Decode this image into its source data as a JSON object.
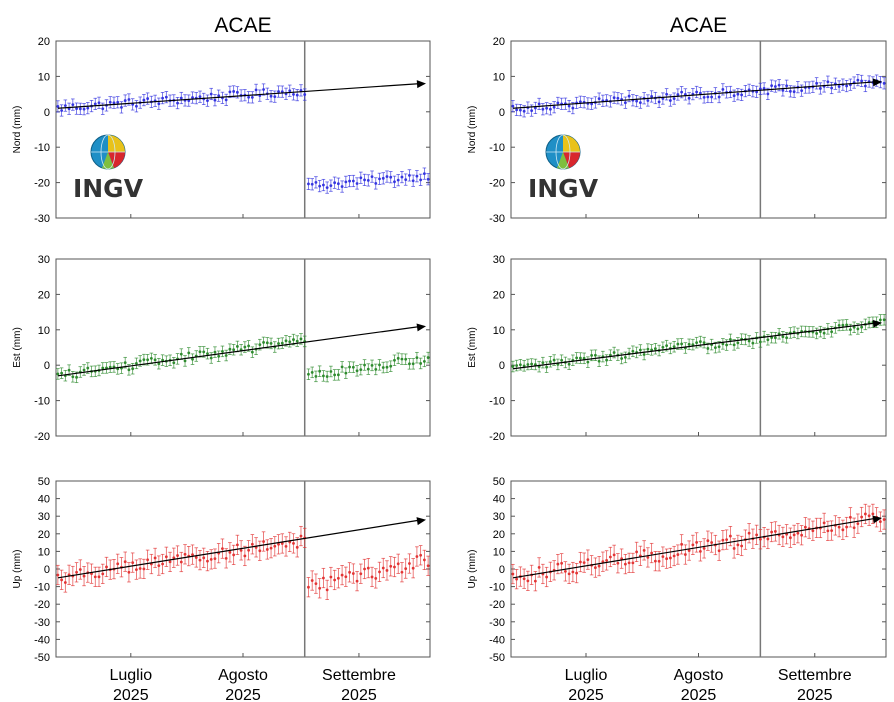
{
  "chart_data": [
    {
      "type": "scatter",
      "title": "ACAE",
      "logo": {
        "text": "INGV",
        "icon": "globe-icon"
      },
      "x_tick_labels": [
        [
          "Luglio",
          "2025"
        ],
        [
          "Agosto",
          "2025"
        ],
        [
          "Settembre",
          "2025"
        ]
      ],
      "panels": [
        {
          "ylabel": "Nord (mm)",
          "ylim": [
            -30,
            20
          ],
          "yticks": [
            -30,
            -20,
            -10,
            0,
            10,
            20
          ],
          "color": "#3535e0",
          "n_points": 100,
          "segments": [
            {
              "day_start": 0,
              "day_end": 66,
              "value_start": 1,
              "value_end": 6,
              "error": 1.6,
              "noise": 1.2
            },
            {
              "day_start": 67,
              "day_end": 99,
              "value_start": -21,
              "value_end": -18,
              "error": 1.6,
              "noise": 1.1
            }
          ],
          "trend": {
            "value_start": 1,
            "value_end": 8
          }
        },
        {
          "ylabel": "Est (mm)",
          "ylim": [
            -20,
            30
          ],
          "yticks": [
            -20,
            -10,
            0,
            10,
            20,
            30
          ],
          "color": "#2e8b2e",
          "n_points": 100,
          "segments": [
            {
              "day_start": 0,
              "day_end": 66,
              "value_start": -3,
              "value_end": 7,
              "error": 1.5,
              "noise": 1.2
            },
            {
              "day_start": 67,
              "day_end": 99,
              "value_start": -3,
              "value_end": 2,
              "error": 1.5,
              "noise": 1.2
            }
          ],
          "trend": {
            "value_start": -3,
            "value_end": 11
          }
        },
        {
          "ylabel": "Up (mm)",
          "ylim": [
            -50,
            50
          ],
          "yticks": [
            -50,
            -40,
            -30,
            -20,
            -10,
            0,
            10,
            20,
            30,
            40,
            50
          ],
          "color": "#e33535",
          "n_points": 100,
          "segments": [
            {
              "day_start": 0,
              "day_end": 66,
              "value_start": -5,
              "value_end": 16,
              "error": 5.5,
              "noise": 3.5
            },
            {
              "day_start": 67,
              "day_end": 99,
              "value_start": -11,
              "value_end": 5,
              "error": 5.5,
              "noise": 4
            }
          ],
          "trend": {
            "value_start": -5,
            "value_end": 28
          }
        }
      ],
      "x_day_range": [
        0,
        100
      ],
      "month_label_days": [
        20,
        50,
        81
      ],
      "offset_day": 66.5
    },
    {
      "type": "scatter",
      "title": "ACAE",
      "logo": {
        "text": "INGV",
        "icon": "globe-icon"
      },
      "x_tick_labels": [
        [
          "Luglio",
          "2025"
        ],
        [
          "Agosto",
          "2025"
        ],
        [
          "Settembre",
          "2025"
        ]
      ],
      "panels": [
        {
          "ylabel": "Nord (mm)",
          "ylim": [
            -30,
            20
          ],
          "yticks": [
            -30,
            -20,
            -10,
            0,
            10,
            20
          ],
          "color": "#3535e0",
          "n_points": 100,
          "segments": [
            {
              "day_start": 0,
              "day_end": 99,
              "value_start": 1,
              "value_end": 8.5,
              "error": 1.6,
              "noise": 1.2
            }
          ],
          "trend": {
            "value_start": 1,
            "value_end": 8.5
          }
        },
        {
          "ylabel": "Est (mm)",
          "ylim": [
            -20,
            30
          ],
          "yticks": [
            -20,
            -10,
            0,
            10,
            20,
            30
          ],
          "color": "#2e8b2e",
          "n_points": 100,
          "segments": [
            {
              "day_start": 0,
              "day_end": 99,
              "value_start": -1,
              "value_end": 12,
              "error": 1.5,
              "noise": 1.2
            }
          ],
          "trend": {
            "value_start": -1,
            "value_end": 12
          }
        },
        {
          "ylabel": "Up (mm)",
          "ylim": [
            -50,
            50
          ],
          "yticks": [
            -50,
            -40,
            -30,
            -20,
            -10,
            0,
            10,
            20,
            30,
            40,
            50
          ],
          "color": "#e33535",
          "n_points": 100,
          "segments": [
            {
              "day_start": 0,
              "day_end": 99,
              "value_start": -5,
              "value_end": 29,
              "error": 5.5,
              "noise": 4
            }
          ],
          "trend": {
            "value_start": -5,
            "value_end": 29
          }
        }
      ],
      "x_day_range": [
        0,
        100
      ],
      "month_label_days": [
        20,
        50,
        81
      ],
      "offset_day": 66.5
    }
  ]
}
